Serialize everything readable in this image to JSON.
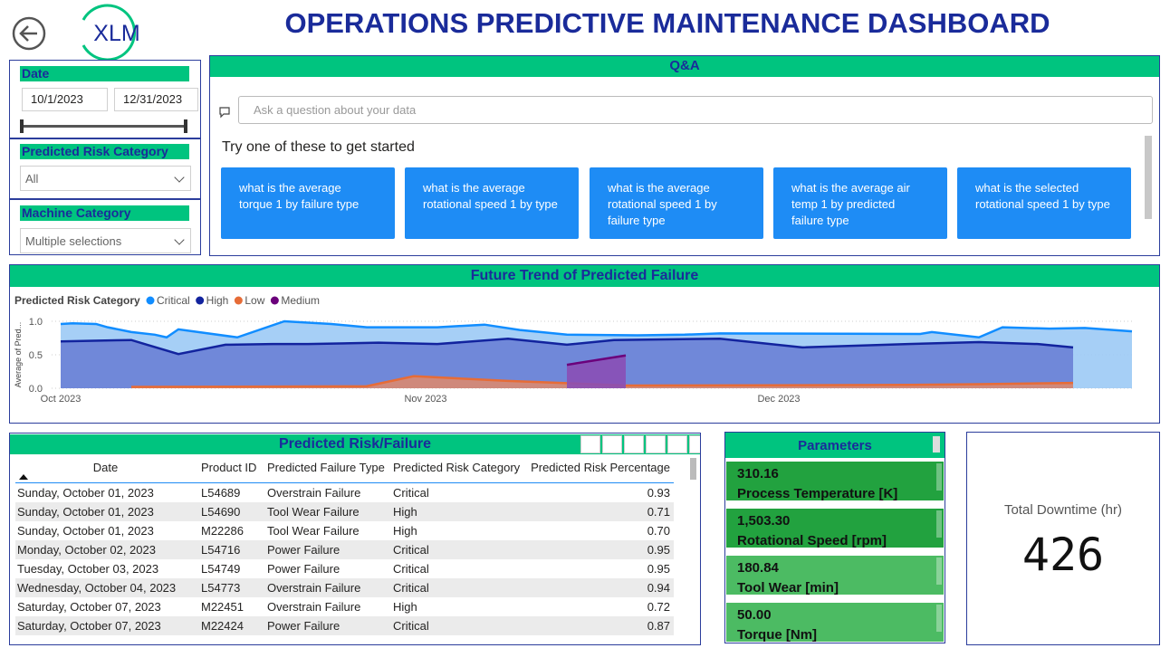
{
  "header": {
    "title": "OPERATIONS PREDICTIVE MAINTENANCE DASHBOARD",
    "logo": "XLM"
  },
  "filters": {
    "date": {
      "title": "Date",
      "start": "10/1/2023",
      "end": "12/31/2023"
    },
    "risk": {
      "title": "Predicted Risk Category",
      "value": "All"
    },
    "machine": {
      "title": "Machine Category",
      "value": "Multiple selections"
    }
  },
  "qa": {
    "title": "Q&A",
    "placeholder": "Ask a question about your data",
    "prompt": "Try one of these to get started",
    "suggestions": [
      "what is the average torque 1 by failure type",
      "what is the average rotational speed 1 by type",
      "what is the average rotational speed 1 by failure type",
      "what is the average air temp 1 by predicted failure type",
      "what is the selected rotational speed 1 by type"
    ]
  },
  "chart_data": {
    "type": "area",
    "title": "Future Trend of Predicted Failure",
    "legend_title": "Predicted Risk Category",
    "y_label": "Average of Pred...",
    "xlim": [
      0,
      91
    ],
    "xticks": [
      {
        "value": 0,
        "label": "Oct 2023"
      },
      {
        "value": 31,
        "label": "Nov 2023"
      },
      {
        "value": 61,
        "label": "Dec 2023"
      }
    ],
    "ylim": [
      0,
      1.0
    ],
    "yticks": [
      {
        "value": 0,
        "label": "0.0"
      },
      {
        "value": 0.5,
        "label": "0.5"
      },
      {
        "value": 1.0,
        "label": "1.0"
      }
    ],
    "grid": true,
    "series": [
      {
        "name": "Critical",
        "color": "#118DFF",
        "fill": "#9ccaf5",
        "x": [
          0,
          1,
          3,
          4,
          6,
          8,
          9,
          10,
          15,
          19,
          23,
          26,
          32,
          36,
          39,
          43,
          49,
          53,
          56,
          73,
          74,
          78,
          80,
          84,
          87,
          91
        ],
        "values": [
          0.96,
          0.97,
          0.96,
          0.91,
          0.84,
          0.8,
          0.76,
          0.88,
          0.76,
          1.0,
          0.96,
          0.91,
          0.91,
          0.95,
          0.87,
          0.8,
          0.79,
          0.8,
          0.82,
          0.81,
          0.84,
          0.76,
          0.91,
          0.89,
          0.9,
          0.85
        ]
      },
      {
        "name": "High",
        "color": "#12239E",
        "fill": "#6a80d6",
        "x": [
          0,
          6,
          10,
          14,
          18,
          21,
          27,
          32,
          38,
          43,
          47,
          56,
          63,
          72,
          78,
          83,
          86
        ],
        "values": [
          0.7,
          0.72,
          0.51,
          0.65,
          0.66,
          0.66,
          0.68,
          0.66,
          0.74,
          0.65,
          0.72,
          0.74,
          0.61,
          0.66,
          0.69,
          0.66,
          0.61
        ]
      },
      {
        "name": "Low",
        "color": "#E66C37",
        "fill": "#d98a70",
        "x": [
          6,
          26,
          30,
          38,
          44,
          48,
          72,
          78,
          86
        ],
        "values": [
          0.02,
          0.03,
          0.18,
          0.11,
          0.07,
          0.04,
          0.05,
          0.06,
          0.08
        ]
      },
      {
        "name": "Medium",
        "color": "#6B007B",
        "fill": "#8a4fb5",
        "x": [
          43,
          48
        ],
        "values": [
          0.35,
          0.49
        ]
      }
    ]
  },
  "table": {
    "title": "Predicted Risk/Failure",
    "columns": [
      "Date",
      "Product ID",
      "Predicted Failure Type",
      "Predicted Risk Category",
      "Predicted Risk Percentage"
    ],
    "rows": [
      [
        "Sunday, October 01, 2023",
        "L54689",
        "Overstrain Failure",
        "Critical",
        "0.93"
      ],
      [
        "Sunday, October 01, 2023",
        "L54690",
        "Tool Wear Failure",
        "High",
        "0.71"
      ],
      [
        "Sunday, October 01, 2023",
        "M22286",
        "Tool Wear Failure",
        "High",
        "0.70"
      ],
      [
        "Monday, October 02, 2023",
        "L54716",
        "Power Failure",
        "Critical",
        "0.95"
      ],
      [
        "Tuesday, October 03, 2023",
        "L54749",
        "Power Failure",
        "Critical",
        "0.95"
      ],
      [
        "Wednesday, October 04, 2023",
        "L54773",
        "Overstrain Failure",
        "Critical",
        "0.94"
      ],
      [
        "Saturday, October 07, 2023",
        "M22451",
        "Overstrain Failure",
        "High",
        "0.72"
      ],
      [
        "Saturday, October 07, 2023",
        "M22424",
        "Power Failure",
        "Critical",
        "0.87"
      ]
    ]
  },
  "parameters": {
    "title": "Parameters",
    "cards": [
      {
        "value": "310.16",
        "label": "Process Temperature [K]"
      },
      {
        "value": "1,503.30",
        "label": "Rotational Speed [rpm]"
      },
      {
        "value": "180.84",
        "label": "Tool Wear [min]"
      },
      {
        "value": "50.00",
        "label": "Torque [Nm]"
      }
    ]
  },
  "downtime": {
    "label": "Total Downtime (hr)",
    "value": "426"
  }
}
